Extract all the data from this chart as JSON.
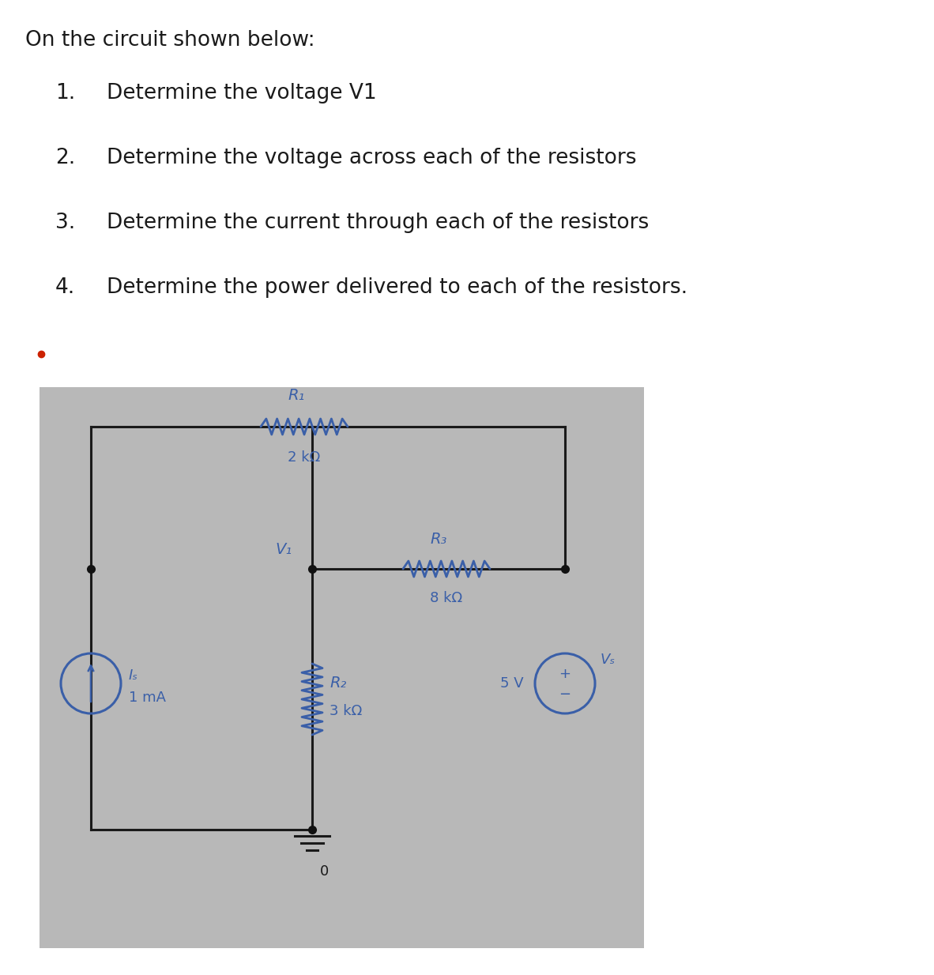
{
  "title": "On the circuit shown below:",
  "items": [
    "Determine the voltage V1",
    "Determine the voltage across each of the resistors",
    "Determine the current through each of the resistors",
    "Determine the power delivered to each of the resistors."
  ],
  "bg_color": "#ffffff",
  "text_color": "#1a1a1a",
  "circuit_color": "#3a5fa8",
  "wire_color": "#1a1a1a",
  "circuit_bg": "#b8b8b8",
  "R1_label": "R₁",
  "R1_val": "2 kΩ",
  "R2_label": "R₂",
  "R2_val": "3 kΩ",
  "R3_label": "R₃",
  "R3_val": "8 kΩ",
  "Is_label": "Iₛ",
  "Is_val": "1 mA",
  "Vs_label": "Vₛ",
  "Vs_val": "5 V",
  "V1_label": "V₁",
  "bullet_color": "#cc2200",
  "title_fontsize": 19,
  "item_fontsize": 19,
  "circuit_fontsize": 13
}
